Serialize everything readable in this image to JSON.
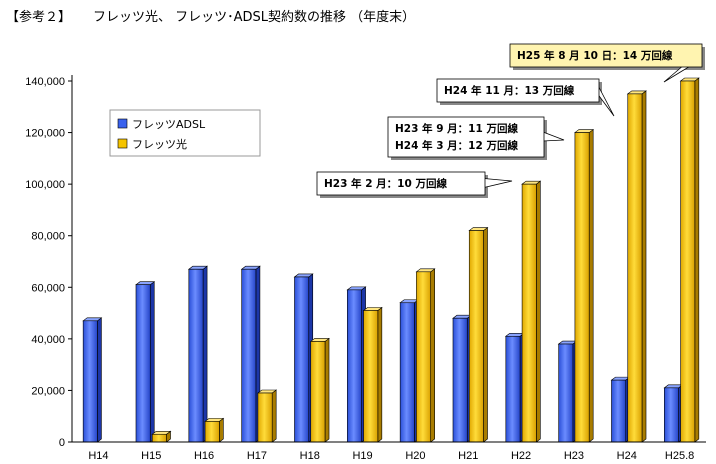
{
  "header": {
    "ref": "【参考２】",
    "title": "フレッツ光、 フレッツ･ADSL契約数の推移 （年度末）"
  },
  "colors": {
    "adsl": "#3a62ee",
    "hikari": "#f5c400"
  },
  "chart_data": {
    "type": "bar",
    "title": "フレッツ光、 フレッツ･ADSL契約数の推移 （年度末）",
    "categories": [
      "H14",
      "H15",
      "H16",
      "H17",
      "H18",
      "H19",
      "H20",
      "H21",
      "H22",
      "H23",
      "H24",
      "H25.8"
    ],
    "series": [
      {
        "name": "フレッツADSL",
        "values": [
          47000,
          61000,
          67000,
          67000,
          64000,
          59000,
          54000,
          48000,
          41000,
          38000,
          24000,
          21000
        ]
      },
      {
        "name": "フレッツ光",
        "values": [
          0,
          3000,
          8000,
          19000,
          39000,
          51000,
          66000,
          82000,
          100000,
          120000,
          135000,
          140000
        ]
      }
    ],
    "ylim": [
      0,
      140000
    ],
    "yticks": [
      "0",
      "20,000",
      "40,000",
      "60,000",
      "80,000",
      "100,000",
      "120,000",
      "140,000"
    ],
    "legend_position": "top-left",
    "annotations": [
      {
        "lines": [
          "H23 年 2 月：10 万回線"
        ],
        "category": "H22"
      },
      {
        "lines": [
          "H23 年 9 月：11 万回線",
          "H24 年 3 月：12 万回線"
        ],
        "category": "H23"
      },
      {
        "lines": [
          "H24 年 11 月：13 万回線"
        ],
        "category": "H24"
      },
      {
        "lines": [
          "H25 年 8 月 10 日：14 万回線"
        ],
        "category": "H25.8"
      }
    ]
  }
}
